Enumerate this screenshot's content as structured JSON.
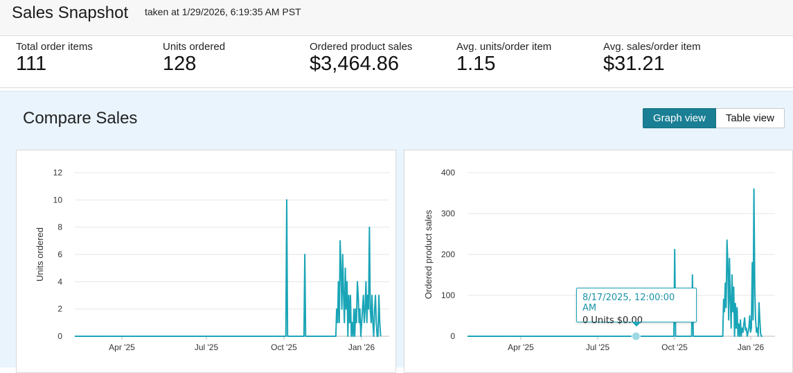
{
  "header": {
    "title": "Sales Snapshot",
    "taken": "taken at 1/29/2026, 6:19:35 AM PST"
  },
  "metrics": [
    {
      "label": "Total order items",
      "value": "111"
    },
    {
      "label": "Units ordered",
      "value": "128"
    },
    {
      "label": "Ordered product sales",
      "value": "$3,464.86"
    },
    {
      "label": "Avg. units/order item",
      "value": "1.15"
    },
    {
      "label": "Avg. sales/order item",
      "value": "$31.21"
    }
  ],
  "compare": {
    "title": "Compare Sales",
    "graph_view_label": "Graph view",
    "table_view_label": "Table view",
    "active_view": "graph"
  },
  "colors": {
    "series": "#1aa5b7",
    "accent": "#1a7f94"
  },
  "tooltip": {
    "date": "8/17/2025, 12:00:00 AM",
    "values": "0 Units $0.00"
  },
  "chart_data": [
    {
      "type": "line",
      "ylabel": "Units ordered",
      "x_ticks": [
        "Apr '25",
        "Jul '25",
        "Oct '25",
        "Jan '26"
      ],
      "y_ticks": [
        "0",
        "2",
        "4",
        "6",
        "8",
        "10",
        "12"
      ],
      "ylim": [
        0,
        12
      ],
      "x_range": [
        "2025-01-29",
        "2026-01-29"
      ],
      "grid": true,
      "series": [
        {
          "points": [
            [
              "2025-01-29",
              0
            ],
            [
              "2025-10-01",
              0
            ],
            [
              "2025-10-02",
              10
            ],
            [
              "2025-10-03",
              0
            ],
            [
              "2025-10-22",
              0
            ],
            [
              "2025-10-23",
              6
            ],
            [
              "2025-10-24",
              0
            ],
            [
              "2025-11-28",
              0
            ],
            [
              "2025-11-29",
              2
            ],
            [
              "2025-11-30",
              1
            ],
            [
              "2025-12-01",
              4
            ],
            [
              "2025-12-02",
              1
            ],
            [
              "2025-12-03",
              7
            ],
            [
              "2025-12-04",
              5
            ],
            [
              "2025-12-05",
              2
            ],
            [
              "2025-12-06",
              6
            ],
            [
              "2025-12-07",
              3
            ],
            [
              "2025-12-08",
              1
            ],
            [
              "2025-12-09",
              5
            ],
            [
              "2025-12-10",
              2
            ],
            [
              "2025-12-11",
              4
            ],
            [
              "2025-12-12",
              0
            ],
            [
              "2025-12-13",
              3
            ],
            [
              "2025-12-14",
              1
            ],
            [
              "2025-12-15",
              3
            ],
            [
              "2025-12-16",
              0
            ],
            [
              "2025-12-17",
              1
            ],
            [
              "2025-12-18",
              0
            ],
            [
              "2025-12-19",
              2
            ],
            [
              "2025-12-20",
              0
            ],
            [
              "2025-12-21",
              2
            ],
            [
              "2025-12-22",
              1
            ],
            [
              "2025-12-23",
              4
            ],
            [
              "2025-12-24",
              3
            ],
            [
              "2025-12-25",
              1
            ],
            [
              "2025-12-26",
              2
            ],
            [
              "2025-12-27",
              0
            ],
            [
              "2025-12-28",
              1
            ],
            [
              "2025-12-29",
              2
            ],
            [
              "2025-12-30",
              3
            ],
            [
              "2025-12-31",
              1
            ],
            [
              "2026-01-01",
              2
            ],
            [
              "2026-01-02",
              4
            ],
            [
              "2026-01-03",
              1
            ],
            [
              "2026-01-04",
              3
            ],
            [
              "2026-01-05",
              2
            ],
            [
              "2026-01-06",
              8
            ],
            [
              "2026-01-07",
              2
            ],
            [
              "2026-01-08",
              1
            ],
            [
              "2026-01-09",
              3
            ],
            [
              "2026-01-10",
              1
            ],
            [
              "2026-01-11",
              0
            ],
            [
              "2026-01-12",
              2
            ],
            [
              "2026-01-13",
              3
            ],
            [
              "2026-01-14",
              1
            ],
            [
              "2026-01-15",
              0
            ],
            [
              "2026-01-16",
              0
            ],
            [
              "2026-01-17",
              3
            ],
            [
              "2026-01-18",
              1
            ],
            [
              "2026-01-19",
              0
            ]
          ]
        }
      ]
    },
    {
      "type": "line",
      "ylabel": "Ordered product sales",
      "x_ticks": [
        "Apr '25",
        "Jul '25",
        "Oct '25",
        "Jan '26"
      ],
      "y_ticks": [
        "0",
        "100",
        "200",
        "300",
        "400"
      ],
      "ylim": [
        0,
        400
      ],
      "x_range": [
        "2025-01-29",
        "2026-01-29"
      ],
      "grid": true,
      "series": [
        {
          "points": [
            [
              "2025-01-29",
              0
            ],
            [
              "2025-10-01",
              0
            ],
            [
              "2025-10-02",
              212
            ],
            [
              "2025-10-03",
              0
            ],
            [
              "2025-10-22",
              0
            ],
            [
              "2025-10-23",
              150
            ],
            [
              "2025-10-24",
              0
            ],
            [
              "2025-11-28",
              0
            ],
            [
              "2025-11-29",
              90
            ],
            [
              "2025-11-30",
              60
            ],
            [
              "2025-12-01",
              130
            ],
            [
              "2025-12-02",
              70
            ],
            [
              "2025-12-03",
              235
            ],
            [
              "2025-12-04",
              180
            ],
            [
              "2025-12-05",
              40
            ],
            [
              "2025-12-06",
              190
            ],
            [
              "2025-12-07",
              90
            ],
            [
              "2025-12-08",
              20
            ],
            [
              "2025-12-09",
              150
            ],
            [
              "2025-12-10",
              60
            ],
            [
              "2025-12-11",
              120
            ],
            [
              "2025-12-12",
              0
            ],
            [
              "2025-12-13",
              80
            ],
            [
              "2025-12-14",
              20
            ],
            [
              "2025-12-15",
              70
            ],
            [
              "2025-12-16",
              0
            ],
            [
              "2025-12-17",
              30
            ],
            [
              "2025-12-18",
              0
            ],
            [
              "2025-12-19",
              40
            ],
            [
              "2025-12-20",
              0
            ],
            [
              "2025-12-21",
              20
            ],
            [
              "2025-12-22",
              10
            ],
            [
              "2025-12-23",
              30
            ],
            [
              "2025-12-24",
              45
            ],
            [
              "2025-12-25",
              15
            ],
            [
              "2025-12-26",
              20
            ],
            [
              "2025-12-27",
              0
            ],
            [
              "2025-12-28",
              10
            ],
            [
              "2025-12-29",
              20
            ],
            [
              "2025-12-30",
              50
            ],
            [
              "2025-12-31",
              10
            ],
            [
              "2026-01-01",
              20
            ],
            [
              "2026-01-02",
              180
            ],
            [
              "2026-01-03",
              40
            ],
            [
              "2026-01-04",
              360
            ],
            [
              "2026-01-05",
              120
            ],
            [
              "2026-01-06",
              40
            ],
            [
              "2026-01-07",
              10
            ],
            [
              "2026-01-08",
              20
            ],
            [
              "2026-01-09",
              0
            ],
            [
              "2026-01-10",
              82
            ],
            [
              "2026-01-11",
              40
            ],
            [
              "2026-01-12",
              5
            ],
            [
              "2026-01-13",
              0
            ],
            [
              "2026-01-14",
              0
            ]
          ]
        }
      ]
    }
  ]
}
